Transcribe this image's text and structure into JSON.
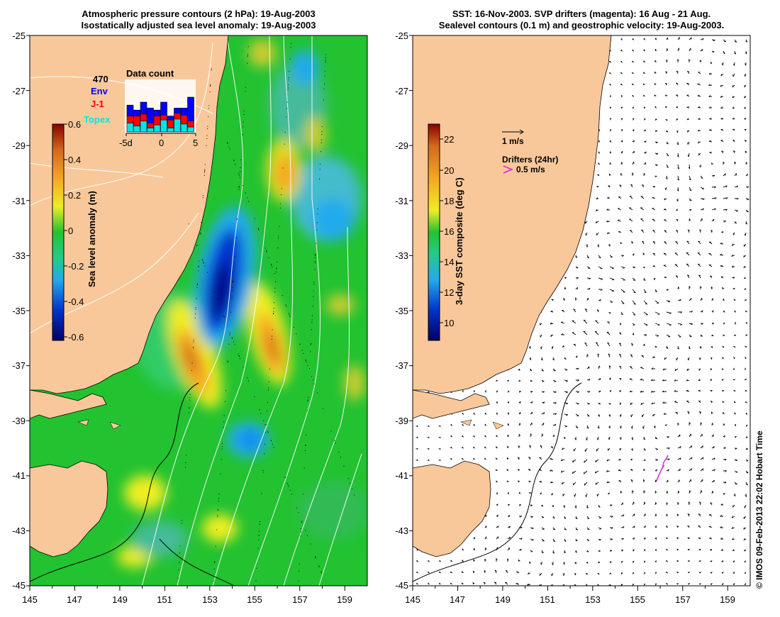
{
  "left_panel": {
    "title_line1": "Atmospheric pressure contours (2 hPa): 19-Aug-2003",
    "title_line2": "Isostatically adjusted sea level anomaly: 19-Aug-2003",
    "colorbar_label": "Sea level anomaly (m)",
    "colorbar_ticks": [
      "0.6",
      "0.4",
      "0.2",
      "0",
      "-0.2",
      "-0.4",
      "-0.6"
    ],
    "data_count": {
      "title": "Data count",
      "total": "470",
      "legend": [
        {
          "label": "Env",
          "color": "#0000ff"
        },
        {
          "label": "J-1",
          "color": "#ff0000"
        },
        {
          "label": "Topex",
          "color": "#00e5e5"
        }
      ],
      "x_ticks": [
        "-5d",
        "0",
        "5"
      ]
    }
  },
  "right_panel": {
    "title_line1": "SST: 16-Nov-2003. SVP drifters (magenta): 16 Aug - 21 Aug.",
    "title_line2": "Sealevel contours (0.1 m) and geostrophic velocity: 19-Aug-2003.",
    "colorbar_label": "3-day SST composite (deg C)",
    "colorbar_ticks": [
      "22",
      "20",
      "18",
      "16",
      "14",
      "12",
      "10"
    ],
    "velocity_scale_label": "1 m/s",
    "drifter_legend_title": "Drifters (24hr)",
    "drifter_scale_label": "0.5 m/s"
  },
  "axes": {
    "y_ticks": [
      "-25",
      "-27",
      "-29",
      "-31",
      "-33",
      "-35",
      "-37",
      "-39",
      "-41",
      "-43",
      "-45"
    ],
    "x_ticks": [
      "145",
      "147",
      "149",
      "151",
      "153",
      "155",
      "157",
      "159"
    ]
  },
  "colors": {
    "land": "#f9c89a",
    "ocean_green": "#22c231",
    "drifter": "#e020e0"
  },
  "credit": "© IMOS 09-Feb-2013 22:02 Hobart Time",
  "chart_data": [
    {
      "type": "heatmap",
      "title": "Atmospheric pressure contours (2 hPa): 19-Aug-2003 / Isostatically adjusted sea level anomaly: 19-Aug-2003",
      "xlim": [
        145,
        160
      ],
      "ylim": [
        -45,
        -25
      ],
      "colorbar_range": [
        -0.6,
        0.6
      ],
      "colorbar_label": "Sea level anomaly (m)"
    },
    {
      "type": "scatter",
      "title": "SST: 16-Nov-2003. SVP drifters (magenta): 16 Aug - 21 Aug. / Sealevel contours (0.1 m) and geostrophic velocity: 19-Aug-2003.",
      "xlim": [
        145,
        160
      ],
      "ylim": [
        -45,
        -25
      ],
      "colorbar_range": [
        9,
        22.5
      ],
      "colorbar_label": "3-day SST composite (deg C)"
    }
  ]
}
